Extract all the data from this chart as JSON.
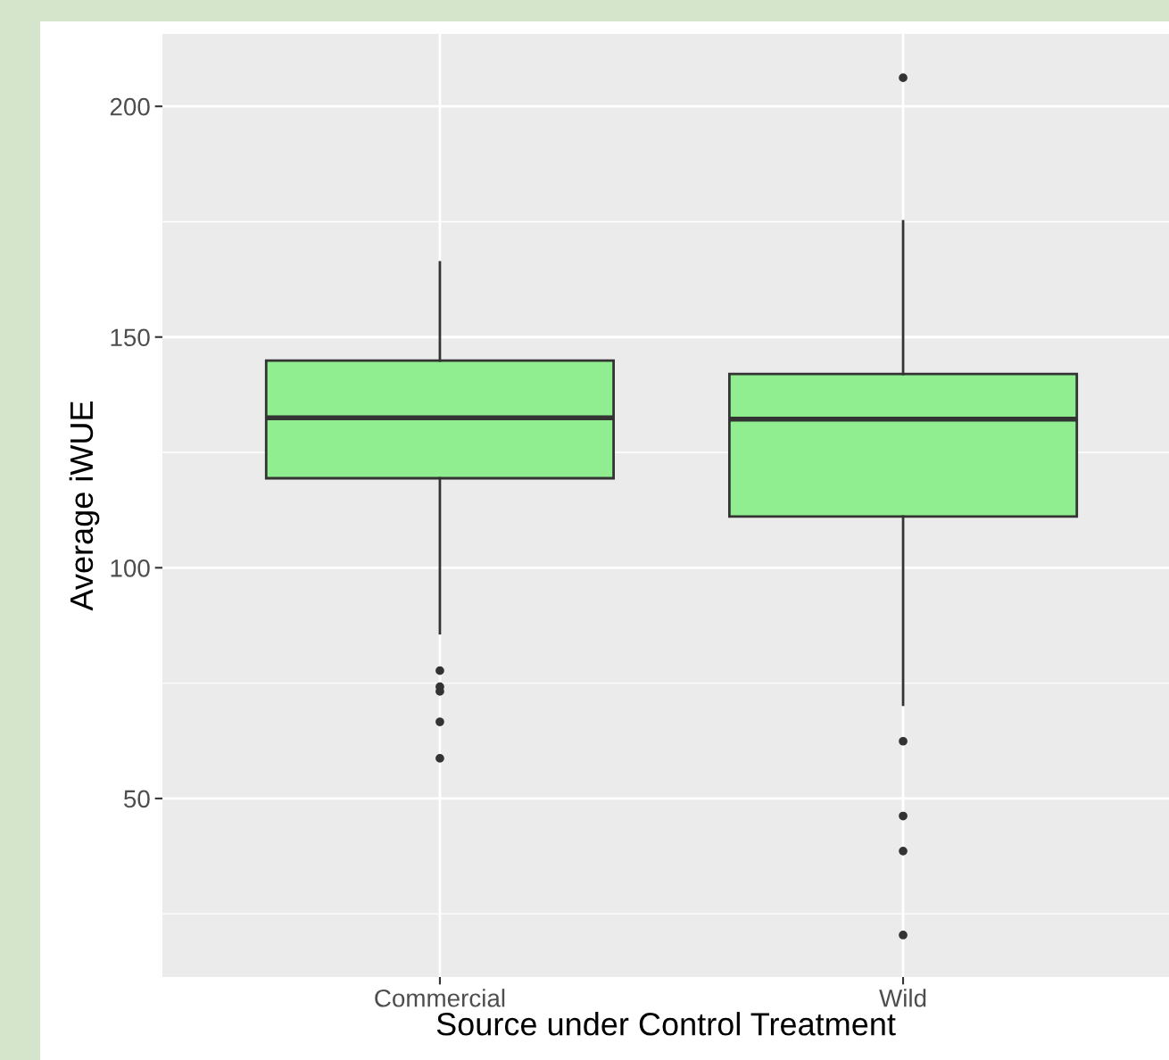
{
  "chart_data": {
    "type": "box",
    "xlabel": "Source under Control Treatment",
    "ylabel": "Average iWUE",
    "categories": [
      "Commercial",
      "Wild"
    ],
    "boxes": [
      {
        "low": 85.8,
        "q1": 119.4,
        "median": 132.5,
        "q3": 144.9,
        "high": 166.2,
        "outliers": [
          77.7,
          74.2,
          73.2,
          66.6,
          58.7
        ]
      },
      {
        "low": 70.3,
        "q1": 111.1,
        "median": 132.2,
        "q3": 142.0,
        "high": 175.1,
        "outliers": [
          206.2,
          62.4,
          46.2,
          38.6,
          20.4
        ]
      }
    ],
    "color": "#90ee90",
    "ylim": [
      11.3,
      215.7
    ],
    "yticks": [
      50,
      100,
      150,
      200
    ],
    "grid": true
  }
}
